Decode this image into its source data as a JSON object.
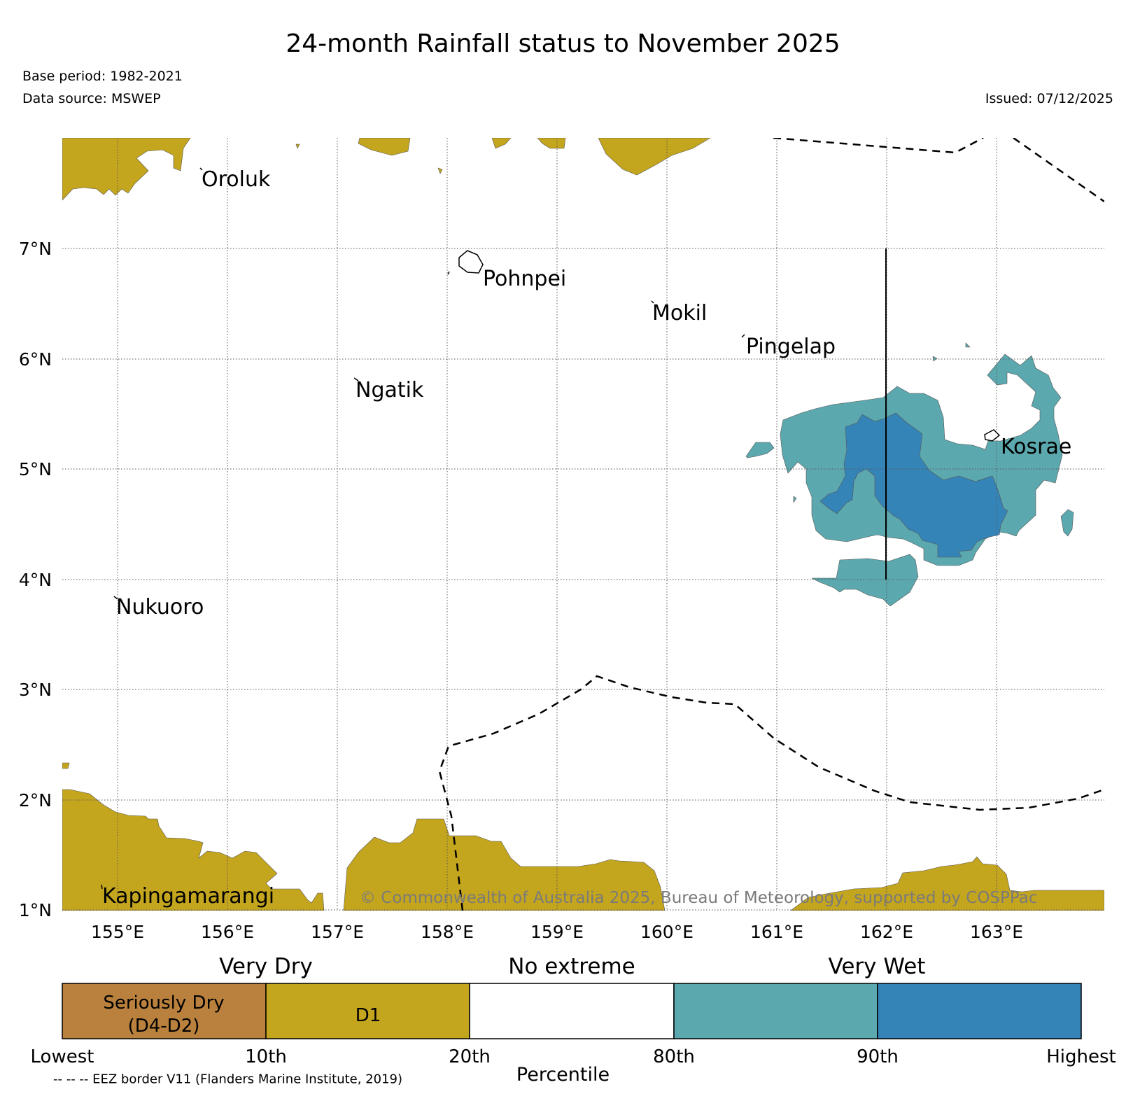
{
  "header": {
    "title": "24-month Rainfall status to November 2025",
    "base_period": "Base period: 1982-2021",
    "data_source": "Data source: MSWEP",
    "issued": "Issued: 07/12/2025"
  },
  "map": {
    "latitude_labels": [
      "7°N",
      "6°N",
      "5°N",
      "4°N",
      "3°N",
      "2°N",
      "1°N"
    ],
    "longitude_labels": [
      "155°E",
      "156°E",
      "157°E",
      "158°E",
      "159°E",
      "160°E",
      "161°E",
      "162°E",
      "163°E"
    ],
    "places": {
      "oroluk": "Oroluk",
      "pohnpei": "Pohnpei",
      "mokil": "Mokil",
      "pingelap": "Pingelap",
      "ngatik": "Ngatik",
      "kosrae": "Kosrae",
      "nukuoro": "Nukuoro",
      "kapingamarangi": "Kapingamarangi"
    },
    "copyright": "© Commonwealth of Australia 2025, Bureau of Meteorology, supported by COSPPac"
  },
  "colors": {
    "seriously_dry": "#b9813d",
    "very_dry_d1": "#c4a51e",
    "no_extreme": "#ffffff",
    "wet_80_90": "#5ba8ae",
    "wet_90_plus": "#3584b8"
  },
  "legend": {
    "headers": {
      "very_dry": "Very Dry",
      "no_extreme": "No extreme",
      "very_wet": "Very Wet"
    },
    "boxes": {
      "seriously_dry_line1": "Seriously Dry",
      "seriously_dry_line2": "(D4-D2)",
      "d1": "D1"
    },
    "ticks": [
      "Lowest",
      "10th",
      "20th",
      "80th",
      "90th",
      "Highest"
    ],
    "axis_title": "Percentile",
    "eez_note": "-- -- -- EEZ border V11 (Flanders Marine Institute, 2019)"
  }
}
